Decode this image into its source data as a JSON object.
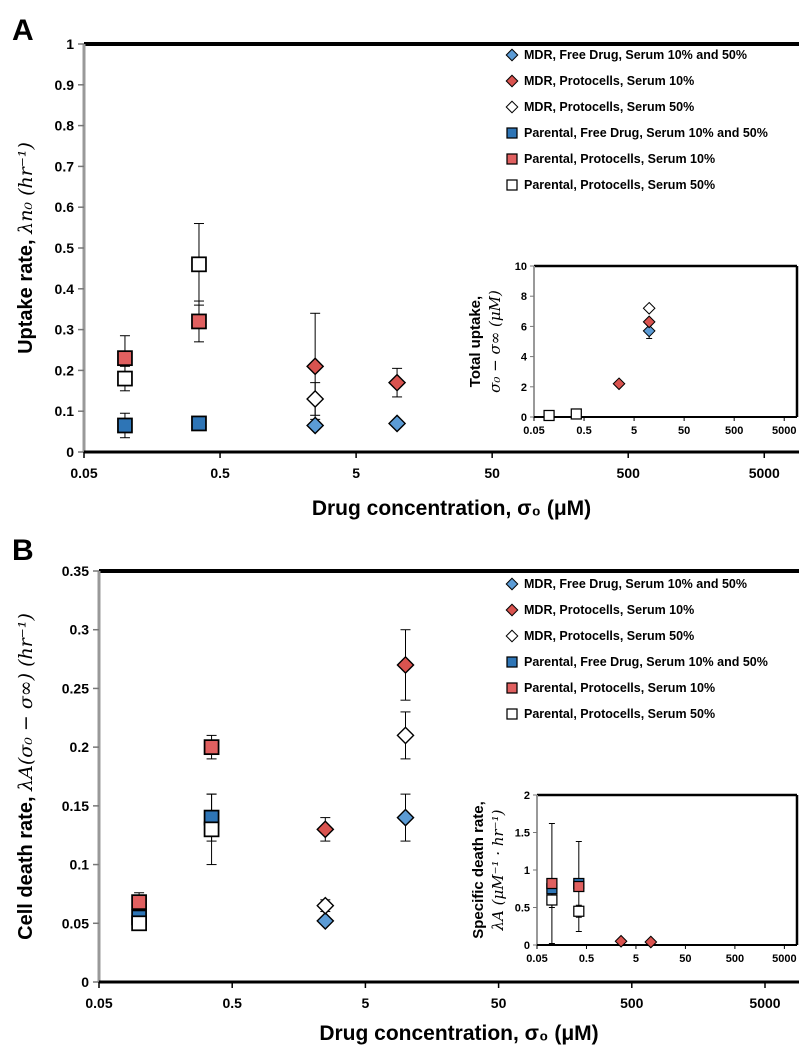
{
  "chart_data": [
    {
      "panel": "A",
      "type": "scatter",
      "xlabel": "Drug concentration, σ₀ (μM)",
      "ylabel": "Uptake rate, ",
      "ylabel_math": "λn₀ (hr⁻¹)",
      "xscale": "log",
      "xlim": [
        0.05,
        9000
      ],
      "ylim": [
        0,
        1
      ],
      "xticks": [
        "0.05",
        "0.5",
        "5",
        "50",
        "500",
        "5000"
      ],
      "yticks": [
        "0",
        "0.1",
        "0.2",
        "0.3",
        "0.4",
        "0.5",
        "0.6",
        "0.7",
        "0.8",
        "0.9",
        "1"
      ],
      "legend_position": "top-right",
      "series": [
        {
          "name": "MDR, Free Drug, Serum 10% and 50%",
          "marker": "diamond",
          "fill": "#5b9bd5",
          "points": [
            {
              "x": 2.5,
              "y": 0.065,
              "err": 0
            },
            {
              "x": 10,
              "y": 0.07,
              "err": 0
            }
          ]
        },
        {
          "name": "MDR, Protocells, Serum 10%",
          "marker": "diamond",
          "fill": "#d9534f",
          "points": [
            {
              "x": 2.5,
              "y": 0.21,
              "err": 0.13
            },
            {
              "x": 10,
              "y": 0.17,
              "err": 0.035
            }
          ]
        },
        {
          "name": "MDR, Protocells, Serum 50%",
          "marker": "diamond",
          "fill": "#ffffff",
          "points": [
            {
              "x": 2.5,
              "y": 0.13,
              "err": 0.04
            }
          ]
        },
        {
          "name": "Parental, Free Drug, Serum 10% and 50%",
          "marker": "square",
          "fill": "#2e75b6",
          "points": [
            {
              "x": 0.1,
              "y": 0.065,
              "err": 0.03
            },
            {
              "x": 0.35,
              "y": 0.07,
              "err": 0
            }
          ]
        },
        {
          "name": "Parental, Protocells, Serum 10%",
          "marker": "square",
          "fill": "#e06060",
          "points": [
            {
              "x": 0.1,
              "y": 0.23,
              "err": 0.055
            },
            {
              "x": 0.35,
              "y": 0.32,
              "err": 0.05
            }
          ]
        },
        {
          "name": "Parental, Protocells, Serum 50%",
          "marker": "square",
          "fill": "#ffffff",
          "points": [
            {
              "x": 0.1,
              "y": 0.18,
              "err": 0.03
            },
            {
              "x": 0.35,
              "y": 0.46,
              "err": 0.1
            }
          ]
        }
      ],
      "inset": {
        "ylabel_text": "Total uptake,",
        "ylabel_math": "σ₀ − σ∞ (μM)",
        "xscale": "log",
        "xlim": [
          0.05,
          9000
        ],
        "ylim": [
          0,
          10
        ],
        "xticks": [
          "0.05",
          "0.5",
          "5",
          "50",
          "500",
          "5000"
        ],
        "yticks": [
          "0",
          "2",
          "4",
          "6",
          "8",
          "10"
        ],
        "points": [
          {
            "x": 0.1,
            "y": 0.1,
            "marker": "square",
            "fill": "#ffffff",
            "err": 0
          },
          {
            "x": 0.35,
            "y": 0.2,
            "marker": "square",
            "fill": "#ffffff",
            "err": 0
          },
          {
            "x": 2.5,
            "y": 2.2,
            "marker": "diamond",
            "fill": "#d9534f",
            "err": 0
          },
          {
            "x": 10,
            "y": 7.2,
            "marker": "diamond",
            "fill": "#ffffff",
            "err": 0
          },
          {
            "x": 10,
            "y": 5.7,
            "marker": "diamond",
            "fill": "#5b9bd5",
            "err": 0.5
          },
          {
            "x": 10,
            "y": 6.3,
            "marker": "diamond",
            "fill": "#d9534f",
            "err": 0
          }
        ]
      }
    },
    {
      "panel": "B",
      "type": "scatter",
      "xlabel": "Drug concentration, σ₀ (μM)",
      "ylabel": "Cell death rate, ",
      "ylabel_math": "λA(σ₀ − σ∞) (hr⁻¹)",
      "xscale": "log",
      "xlim": [
        0.05,
        9000
      ],
      "ylim": [
        0,
        0.35
      ],
      "xticks": [
        "0.05",
        "0.5",
        "5",
        "50",
        "500",
        "5000"
      ],
      "yticks": [
        "0",
        "0.05",
        "0.1",
        "0.15",
        "0.2",
        "0.25",
        "0.3",
        "0.35"
      ],
      "legend_position": "top-right",
      "series": [
        {
          "name": "MDR, Free Drug, Serum 10% and 50%",
          "marker": "diamond",
          "fill": "#5b9bd5",
          "points": [
            {
              "x": 2.5,
              "y": 0.052,
              "err": 0
            },
            {
              "x": 10,
              "y": 0.14,
              "err": 0.02
            }
          ]
        },
        {
          "name": "MDR, Protocells, Serum 10%",
          "marker": "diamond",
          "fill": "#d9534f",
          "points": [
            {
              "x": 2.5,
              "y": 0.13,
              "err": 0.01
            },
            {
              "x": 10,
              "y": 0.27,
              "err": 0.03
            }
          ]
        },
        {
          "name": "MDR, Protocells, Serum 50%",
          "marker": "diamond",
          "fill": "#ffffff",
          "points": [
            {
              "x": 2.5,
              "y": 0.065,
              "err": 0.005
            },
            {
              "x": 10,
              "y": 0.21,
              "err": 0.02
            }
          ]
        },
        {
          "name": "Parental, Free Drug, Serum 10% and 50%",
          "marker": "square",
          "fill": "#2e75b6",
          "points": [
            {
              "x": 0.1,
              "y": 0.055,
              "err": 0
            },
            {
              "x": 0.35,
              "y": 0.14,
              "err": 0.02
            }
          ]
        },
        {
          "name": "Parental, Protocells, Serum 10%",
          "marker": "square",
          "fill": "#e06060",
          "points": [
            {
              "x": 0.1,
              "y": 0.068,
              "err": 0.008
            },
            {
              "x": 0.35,
              "y": 0.2,
              "err": 0.01
            }
          ]
        },
        {
          "name": "Parental, Protocells, Serum 50%",
          "marker": "square",
          "fill": "#ffffff",
          "points": [
            {
              "x": 0.1,
              "y": 0.05,
              "err": 0.005
            },
            {
              "x": 0.35,
              "y": 0.13,
              "err": 0.03
            }
          ]
        }
      ],
      "inset": {
        "ylabel_text": "Specific death rate,",
        "ylabel_math": "λA (μM⁻¹ · hr⁻¹)",
        "xscale": "log",
        "xlim": [
          0.05,
          9000
        ],
        "ylim": [
          0,
          2
        ],
        "xticks": [
          "0.05",
          "0.5",
          "5",
          "50",
          "500",
          "5000"
        ],
        "yticks": [
          "0",
          "0.5",
          "1",
          "1.5",
          "2"
        ],
        "points": [
          {
            "x": 0.1,
            "y": 0.6,
            "marker": "square",
            "fill": "#ffffff",
            "err": 0.1
          },
          {
            "x": 0.1,
            "y": 0.75,
            "marker": "square",
            "fill": "#2e75b6",
            "err": 0
          },
          {
            "x": 0.1,
            "y": 0.82,
            "marker": "square",
            "fill": "#e06060",
            "err": 0.8
          },
          {
            "x": 0.35,
            "y": 0.45,
            "marker": "square",
            "fill": "#ffffff",
            "err": 0.08
          },
          {
            "x": 0.35,
            "y": 0.82,
            "marker": "square",
            "fill": "#2e75b6",
            "err": 0
          },
          {
            "x": 0.35,
            "y": 0.78,
            "marker": "square",
            "fill": "#e06060",
            "err": 0.6
          },
          {
            "x": 2.5,
            "y": 0.05,
            "marker": "diamond",
            "fill": "#d9534f",
            "err": 0
          },
          {
            "x": 10,
            "y": 0.04,
            "marker": "diamond",
            "fill": "#d9534f",
            "err": 0
          }
        ]
      }
    }
  ]
}
